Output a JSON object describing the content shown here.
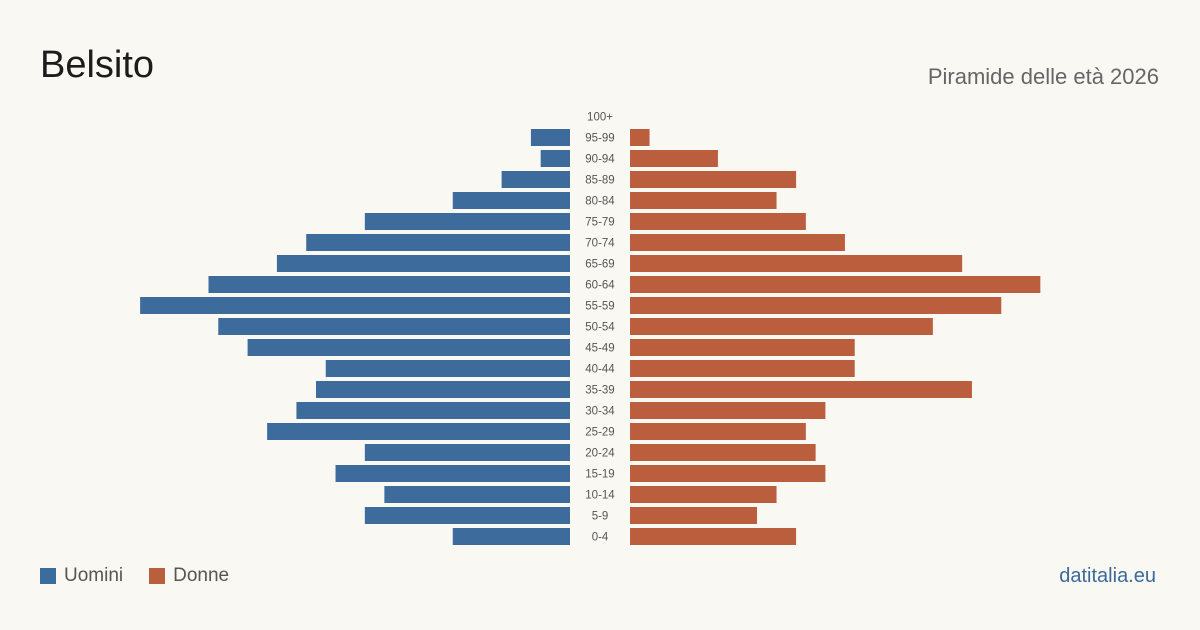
{
  "header": {
    "title": "Belsito",
    "subtitle": "Piramide delle età 2026"
  },
  "legend": [
    {
      "label": "Uomini",
      "color": "#3c6b9c"
    },
    {
      "label": "Donne",
      "color": "#bb5e3e"
    }
  ],
  "brand": "datitalia.eu",
  "chart_data": {
    "type": "bar",
    "orientation": "horizontal-pyramid",
    "categories": [
      "0-4",
      "5-9",
      "10-14",
      "15-19",
      "20-24",
      "25-29",
      "30-34",
      "35-39",
      "40-44",
      "45-49",
      "50-54",
      "55-59",
      "60-64",
      "65-69",
      "70-74",
      "75-79",
      "80-84",
      "85-89",
      "90-94",
      "95-99",
      "100+"
    ],
    "series": [
      {
        "name": "Uomini",
        "color": "#3c6b9c",
        "values": [
          12,
          21,
          19,
          24,
          21,
          31,
          28,
          26,
          25,
          33,
          36,
          44,
          37,
          30,
          27,
          21,
          12,
          7,
          3,
          4,
          0
        ]
      },
      {
        "name": "Donne",
        "color": "#bb5e3e",
        "values": [
          17,
          13,
          15,
          20,
          19,
          18,
          20,
          35,
          23,
          23,
          31,
          38,
          42,
          34,
          22,
          18,
          15,
          17,
          9,
          2,
          0
        ]
      }
    ],
    "grid": false,
    "legend_position": "bottom-left"
  }
}
